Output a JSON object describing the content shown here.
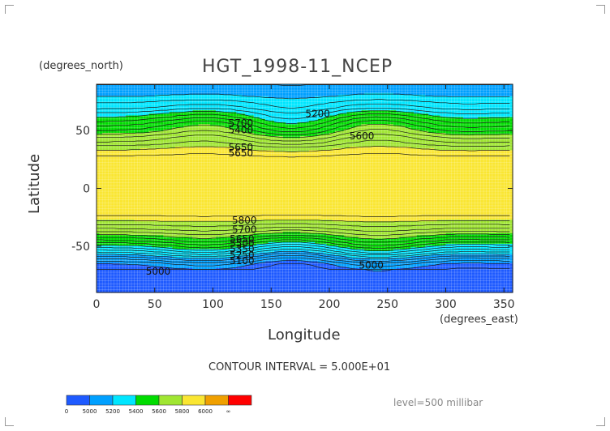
{
  "chart_data": {
    "type": "heatmap",
    "title": "HGT_1998-11_NCEP",
    "xlabel": "Longitude",
    "ylabel": "Latitude",
    "x_units": "(degrees_east)",
    "y_units": "(degrees_north)",
    "xlim": [
      0,
      357.5
    ],
    "ylim": [
      -90,
      90
    ],
    "x_ticks": [
      "0",
      "50",
      "100",
      "150",
      "200",
      "250",
      "300",
      "350"
    ],
    "x_tick_values": [
      0,
      50,
      100,
      150,
      200,
      250,
      300,
      350
    ],
    "y_ticks": [
      "50",
      "0",
      "-50"
    ],
    "y_tick_values": [
      50,
      0,
      -50
    ],
    "contour_interval_text": "CONTOUR INTERVAL = 5.000E+01",
    "level_text": "level=500 millibar",
    "grid": true,
    "band_levels": [
      4800,
      5000,
      5200,
      5400,
      5600,
      5800,
      6000,
      6200
    ],
    "band_colors": [
      "#1e5aff",
      "#00a0ff",
      "#00e6ff",
      "#00dc00",
      "#a0e632",
      "#fae632",
      "#f0a000",
      "#ff0000"
    ],
    "colorbar_labels": [
      "0",
      "5000",
      "5200",
      "5400",
      "5600",
      "5800",
      "6000",
      "∞"
    ],
    "zonal_profile": {
      "lat": [
        90,
        80,
        70,
        65,
        60,
        55,
        50,
        45,
        40,
        35,
        30,
        25,
        20,
        0,
        -20,
        -25,
        -30,
        -35,
        -40,
        -45,
        -50,
        -55,
        -60,
        -65,
        -70,
        -80,
        -90
      ],
      "hgt": [
        5150,
        5200,
        5300,
        5380,
        5450,
        5520,
        5580,
        5660,
        5720,
        5790,
        5840,
        5880,
        5890,
        5880,
        5870,
        5840,
        5770,
        5700,
        5610,
        5510,
        5400,
        5280,
        5140,
        5020,
        4960,
        4960,
        4980
      ]
    },
    "contour_labels": [
      {
        "text": "5200",
        "lon": 190,
        "lat": 64
      },
      {
        "text": "5600",
        "lon": 228,
        "lat": 45
      },
      {
        "text": "5700",
        "lon": 124,
        "lat": 56
      },
      {
        "text": "5400",
        "lon": 124,
        "lat": 50
      },
      {
        "text": "5650",
        "lon": 124,
        "lat": 35
      },
      {
        "text": "5650",
        "lon": 124,
        "lat": 30
      },
      {
        "text": "5800",
        "lon": 127,
        "lat": -28
      },
      {
        "text": "5700",
        "lon": 127,
        "lat": -36
      },
      {
        "text": "5650",
        "lon": 125,
        "lat": -44
      },
      {
        "text": "5500",
        "lon": 125,
        "lat": -48
      },
      {
        "text": "5350",
        "lon": 125,
        "lat": -53
      },
      {
        "text": "5250",
        "lon": 125,
        "lat": -58
      },
      {
        "text": "5100",
        "lon": 125,
        "lat": -63
      },
      {
        "text": "5000",
        "lon": 236,
        "lat": -67
      },
      {
        "text": "5000",
        "lon": 53,
        "lat": -72
      }
    ]
  }
}
